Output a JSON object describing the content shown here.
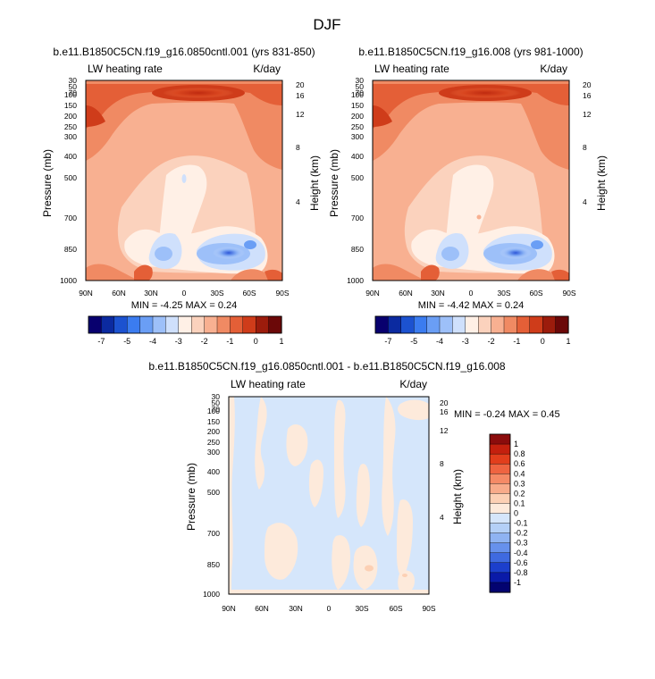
{
  "figure": {
    "title": "DJF"
  },
  "chart_data": [
    {
      "type": "heatmap",
      "title": "b.e11.B1850C5CN.f19_g16.0850cntl.001 (yrs 831-850)",
      "left_label": "LW heating rate",
      "right_label": "K/day",
      "ylabel": "Pressure (mb)",
      "y2label": "Height (km)",
      "xlabel": "",
      "x_ticks": [
        "90N",
        "60N",
        "30N",
        "0",
        "30S",
        "60S",
        "90S"
      ],
      "x_range": [
        90,
        -90
      ],
      "y_ticks": [
        "30",
        "50",
        "70",
        "100",
        "150",
        "200",
        "250",
        "300",
        "400",
        "500",
        "700",
        "850",
        "1000"
      ],
      "y_range": [
        30,
        1000
      ],
      "height_ticks": [
        "20",
        "16",
        "12",
        "8",
        "4"
      ],
      "stats": "MIN = -4.25  MAX =  0.24",
      "colorbar": {
        "orientation": "horizontal",
        "labels": [
          "-7",
          "-5",
          "-4",
          "-3",
          "-2",
          "-1",
          "0",
          "1"
        ],
        "colors": [
          "#08006e",
          "#0b2aa0",
          "#1c52d0",
          "#3b7cf0",
          "#6a9ef5",
          "#9dc0f9",
          "#cfe0fc",
          "#fff0e6",
          "#fbd2bd",
          "#f8b091",
          "#f08a63",
          "#e45f37",
          "#cf3c1a",
          "#9c1c0c",
          "#6b0808"
        ]
      }
    },
    {
      "type": "heatmap",
      "title": "b.e11.B1850C5CN.f19_g16.008 (yrs 981-1000)",
      "left_label": "LW heating rate",
      "right_label": "K/day",
      "ylabel": "Pressure (mb)",
      "y2label": "Height (km)",
      "xlabel": "",
      "x_ticks": [
        "90N",
        "60N",
        "30N",
        "0",
        "30S",
        "60S",
        "90S"
      ],
      "x_range": [
        90,
        -90
      ],
      "y_ticks": [
        "30",
        "50",
        "70",
        "100",
        "150",
        "200",
        "250",
        "300",
        "400",
        "500",
        "700",
        "850",
        "1000"
      ],
      "y_range": [
        30,
        1000
      ],
      "height_ticks": [
        "20",
        "16",
        "12",
        "8",
        "4"
      ],
      "stats": "MIN = -4.42  MAX =  0.24",
      "colorbar": {
        "orientation": "horizontal",
        "labels": [
          "-7",
          "-5",
          "-4",
          "-3",
          "-2",
          "-1",
          "0",
          "1"
        ],
        "colors": [
          "#08006e",
          "#0b2aa0",
          "#1c52d0",
          "#3b7cf0",
          "#6a9ef5",
          "#9dc0f9",
          "#cfe0fc",
          "#fff0e6",
          "#fbd2bd",
          "#f8b091",
          "#f08a63",
          "#e45f37",
          "#cf3c1a",
          "#9c1c0c",
          "#6b0808"
        ]
      }
    },
    {
      "type": "heatmap",
      "title": "b.e11.B1850C5CN.f19_g16.0850cntl.001 - b.e11.B1850C5CN.f19_g16.008",
      "left_label": "LW heating rate",
      "right_label": "K/day",
      "ylabel": "Pressure (mb)",
      "y2label": "Height (km)",
      "xlabel": "",
      "x_ticks": [
        "90N",
        "60N",
        "30N",
        "0",
        "30S",
        "60S",
        "90S"
      ],
      "x_range": [
        90,
        -90
      ],
      "y_ticks": [
        "30",
        "50",
        "70",
        "100",
        "150",
        "200",
        "250",
        "300",
        "400",
        "500",
        "700",
        "850",
        "1000"
      ],
      "y_range": [
        30,
        1000
      ],
      "height_ticks": [
        "20",
        "16",
        "12",
        "8",
        "4"
      ],
      "stats": "MIN = -0.24  MAX =  0.45",
      "colorbar": {
        "orientation": "vertical",
        "labels": [
          "1",
          "0.8",
          "0.6",
          "0.4",
          "0.3",
          "0.2",
          "0.1",
          "0",
          "-0.1",
          "-0.2",
          "-0.3",
          "-0.4",
          "-0.6",
          "-0.8",
          "-1"
        ],
        "colors": [
          "#8b0c0c",
          "#c4200e",
          "#e23e1c",
          "#ef6441",
          "#f58a66",
          "#f8ab8a",
          "#fcd0b4",
          "#fdeadb",
          "#d5e6fb",
          "#b4d0f7",
          "#8fb3f2",
          "#6791ec",
          "#3f6ae0",
          "#1c3fcc",
          "#0a1aa8",
          "#030370"
        ]
      }
    }
  ]
}
